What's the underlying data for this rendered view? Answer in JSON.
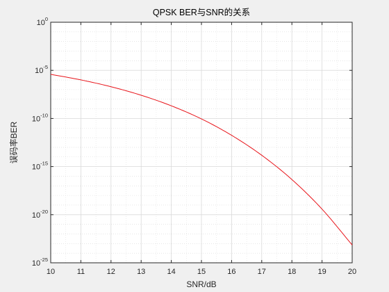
{
  "chart_data": {
    "type": "line",
    "title": "QPSK BER与SNR的关系",
    "xlabel": "SNR/dB",
    "ylabel": "误码率BER",
    "xlim": [
      10,
      20
    ],
    "ylim_log10": [
      -25,
      0
    ],
    "y_scale": "log",
    "grid": "on (major and minor, dotted)",
    "x_ticks": [
      "10",
      "11",
      "12",
      "13",
      "14",
      "15",
      "16",
      "17",
      "18",
      "19",
      "20"
    ],
    "y_ticks": [
      {
        "base": "10",
        "exp": "0",
        "log10": 0
      },
      {
        "base": "10",
        "exp": "-5",
        "log10": -5
      },
      {
        "base": "10",
        "exp": "-10",
        "log10": -10
      },
      {
        "base": "10",
        "exp": "-15",
        "log10": -15
      },
      {
        "base": "10",
        "exp": "-20",
        "log10": -20
      },
      {
        "base": "10",
        "exp": "-25",
        "log10": -25
      }
    ],
    "series": [
      {
        "color": "#e8141a",
        "x": [
          10,
          11,
          12,
          13,
          14,
          15,
          16,
          17,
          18,
          19,
          20
        ],
        "y": [
          3.87e-06,
          1.02e-06,
          1.99e-07,
          2.6e-08,
          2.07e-09,
          9e-11,
          1.78e-12,
          1.5e-14,
          4.5e-17,
          3.8e-20,
          7.1e-24
        ]
      }
    ]
  }
}
